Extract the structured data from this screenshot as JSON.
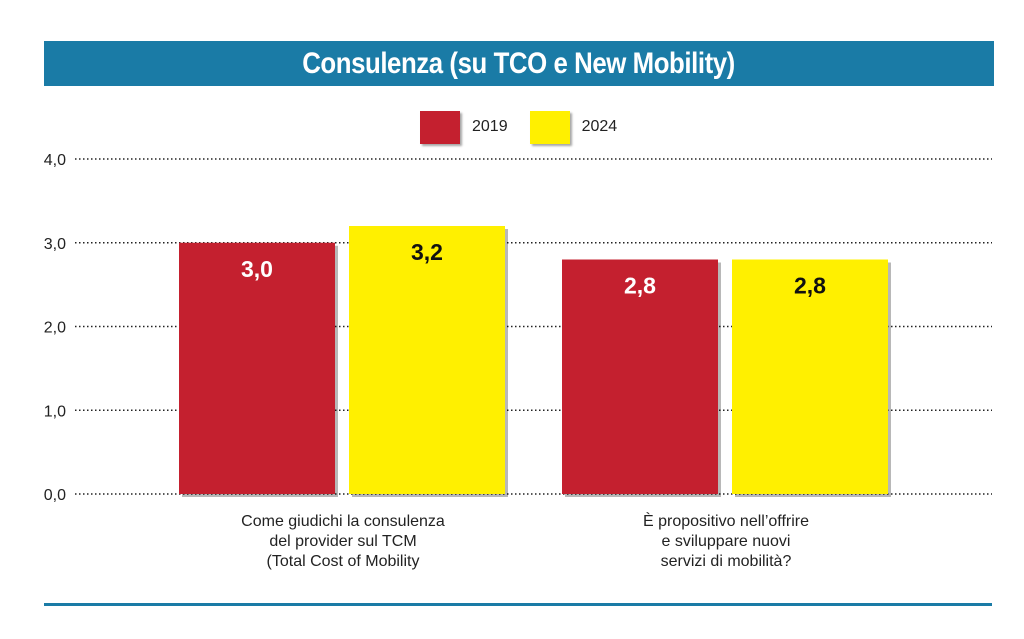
{
  "title": "Consulenza (su TCO e New Mobility)",
  "colors": {
    "banner": "#1a7ba6",
    "s2019": "#c4202f",
    "s2024": "#fff000"
  },
  "chart_data": {
    "type": "bar",
    "title": "Consulenza (su TCO e New Mobility)",
    "categories": [
      [
        "Come giudichi la consulenza",
        "del provider sul TCM",
        "(Total Cost of Mobility"
      ],
      [
        "È propositivo nell’offrire",
        "e sviluppare nuovi",
        "servizi di mobilità?"
      ]
    ],
    "series": [
      {
        "name": "2019",
        "values": [
          3.0,
          2.8
        ],
        "labels": [
          "3,0",
          "2,8"
        ],
        "color": "#c4202f",
        "label_color": "#ffffff"
      },
      {
        "name": "2024",
        "values": [
          3.2,
          2.8
        ],
        "labels": [
          "3,2",
          "2,8"
        ],
        "color": "#fff000",
        "label_color": "#111111"
      }
    ],
    "ylim": [
      0,
      4
    ],
    "yticks": [
      0,
      1,
      2,
      3,
      4
    ],
    "ytick_labels": [
      "0,0",
      "1,0",
      "2,0",
      "3,0",
      "4,0"
    ],
    "grid": true,
    "legend": "top-center"
  }
}
